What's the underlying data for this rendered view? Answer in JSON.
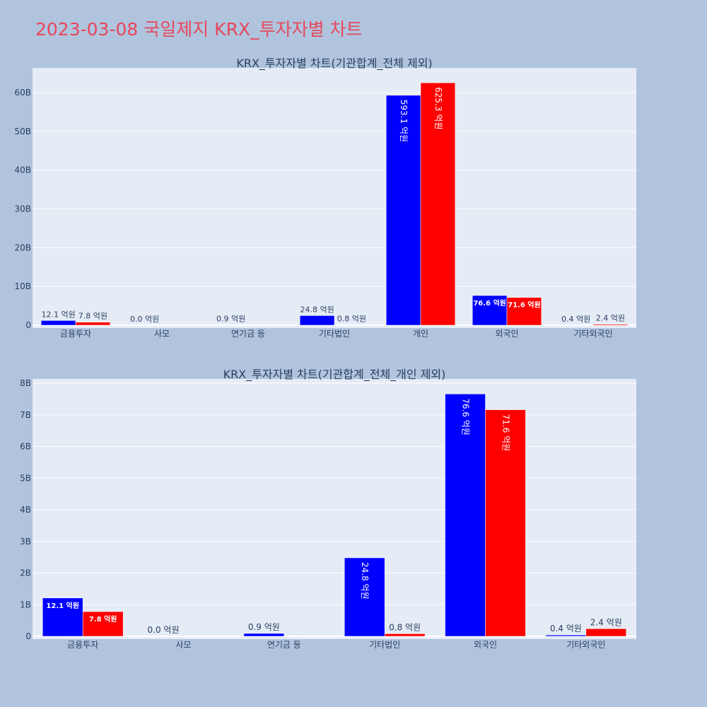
{
  "title": "2023-03-08 국일제지 KRX_투자자별 차트",
  "colors": {
    "buy": "#0000ff",
    "sell": "#ff0000",
    "plot_bg": "#e5ecf6",
    "page_bg": "#b0c4de",
    "title": "#e8475b"
  },
  "chart_data": [
    {
      "type": "bar",
      "title": "KRX_투자자별 차트(기관합계_전체 제외)",
      "categories": [
        "금융투자",
        "사모",
        "연기금 등",
        "기타법인",
        "개인",
        "외국인",
        "기타외국인"
      ],
      "series": [
        {
          "color": "#0000ff",
          "values": [
            1.21,
            0.0,
            0.09,
            2.48,
            59.31,
            7.66,
            0.04
          ],
          "labels": [
            "12.1 억원",
            "0.0 억원",
            "0.9 억원",
            "24.8 억원",
            "593.1 억원",
            "76.6 억원",
            "0.4 억원"
          ]
        },
        {
          "color": "#ff0000",
          "values": [
            0.78,
            0.0,
            0.0,
            0.08,
            62.53,
            7.16,
            0.24
          ],
          "labels": [
            "7.8 억원",
            "",
            "",
            "0.8 억원",
            "625.3 억원",
            "71.6 억원",
            "2.4 억원"
          ]
        }
      ],
      "yticks": [
        "0",
        "10B",
        "20B",
        "30B",
        "40B",
        "50B",
        "60B"
      ],
      "ylim": [
        0,
        66
      ],
      "grid": true
    },
    {
      "type": "bar",
      "title": "KRX_투자자별 차트(기관합계_전체_개인 제외)",
      "categories": [
        "금융투자",
        "사모",
        "연기금 등",
        "기타법인",
        "외국인",
        "기타외국인"
      ],
      "series": [
        {
          "color": "#0000ff",
          "values": [
            1.21,
            0.0,
            0.09,
            2.48,
            7.66,
            0.04
          ],
          "labels": [
            "12.1 억원",
            "0.0 억원",
            "0.9 억원",
            "24.8 억원",
            "76.6 억원",
            "0.4 억원"
          ]
        },
        {
          "color": "#ff0000",
          "values": [
            0.78,
            0.0,
            0.0,
            0.08,
            7.16,
            0.24
          ],
          "labels": [
            "7.8 억원",
            "",
            "",
            "0.8 억원",
            "71.6 억원",
            "2.4 억원"
          ]
        }
      ],
      "yticks": [
        "0",
        "1B",
        "2B",
        "3B",
        "4B",
        "5B",
        "6B",
        "7B",
        "8B"
      ],
      "ylim": [
        0,
        8.1
      ],
      "grid": true
    }
  ]
}
